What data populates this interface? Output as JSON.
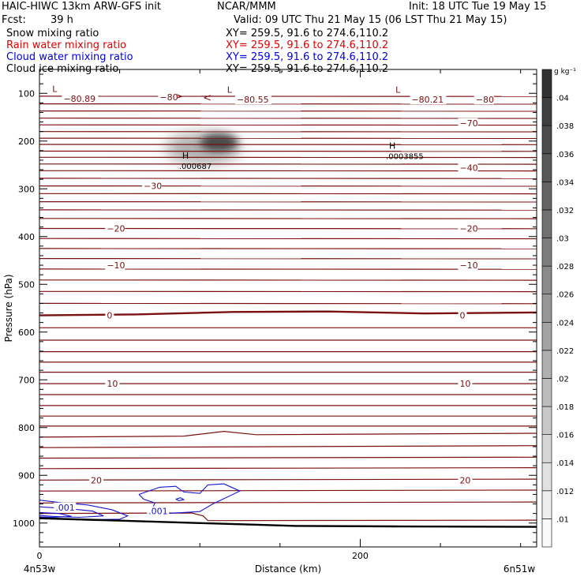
{
  "header": {
    "model": "HAIC-HIWC 13km ARW-GFS init",
    "org": "NCAR/MMM",
    "init": "Init: 18 UTC Tue 19 May 15",
    "fcst_label": "Fcst:",
    "fcst_value": "39 h",
    "valid": "Valid: 09 UTC Thu 21 May 15 (06 LST Thu 21 May 15)",
    "fields": [
      {
        "name": "Snow mixing ratio",
        "xy": "XY= 259.5, 91.6 to 274.6,110.2",
        "color": "#000000"
      },
      {
        "name": "Rain water mixing ratio",
        "xy": "XY= 259.5, 91.6 to 274.6,110.2",
        "color": "#e00000"
      },
      {
        "name": "Cloud water mixing ratio",
        "xy": "XY= 259.5, 91.6 to 274.6,110.2",
        "color": "#0000e0"
      },
      {
        "name": "Cloud ice mixing ratio",
        "xy": "XY= 259.5, 91.6 to 274.6,110.2",
        "color": "#000000"
      }
    ]
  },
  "chart_data": {
    "type": "cross-section",
    "xlabel": "Distance (km)",
    "ylabel": "Pressure (hPa)",
    "x_ticks": [
      0,
      200
    ],
    "xlim": [
      0,
      310
    ],
    "y_ticks": [
      100,
      200,
      300,
      400,
      500,
      600,
      700,
      800,
      900,
      1000
    ],
    "ylim": [
      50,
      1050
    ],
    "y_scale": "linear",
    "x_endpoint_labels": {
      "left": "4n53w",
      "right": "6n51w"
    },
    "colorbar": {
      "unit": "g kg⁻¹",
      "ticks": [
        ".01",
        ".012",
        ".014",
        ".016",
        ".018",
        ".02",
        ".022",
        ".024",
        ".026",
        ".028",
        ".03",
        ".032",
        ".034",
        ".036",
        ".038",
        ".04"
      ]
    },
    "temperature_contours": [
      {
        "labels": [
          {
            "x": 15,
            "p": 111,
            "text": "−80.89"
          },
          {
            "x": 75,
            "p": 108,
            "text": "−80"
          },
          {
            "x": 123,
            "p": 113,
            "text": "−80.55"
          },
          {
            "x": 232,
            "p": 113,
            "text": "−80.21"
          },
          {
            "x": 272,
            "p": 113,
            "text": "−80"
          }
        ]
      },
      {
        "labels": [
          {
            "x": 262,
            "p": 162,
            "text": "−70"
          }
        ]
      },
      {
        "labels": [
          {
            "x": 262,
            "p": 256,
            "text": "−40"
          }
        ]
      },
      {
        "labels": [
          {
            "x": 65,
            "p": 294,
            "text": "−30"
          }
        ]
      },
      {
        "labels": [
          {
            "x": 42,
            "p": 383,
            "text": "−20"
          },
          {
            "x": 262,
            "p": 383,
            "text": "−20"
          }
        ]
      },
      {
        "labels": [
          {
            "x": 42,
            "p": 460,
            "text": "−10"
          },
          {
            "x": 262,
            "p": 460,
            "text": "−10"
          }
        ]
      },
      {
        "labels": [
          {
            "x": 42,
            "p": 565,
            "text": "0"
          },
          {
            "x": 262,
            "p": 565,
            "text": "0"
          }
        ]
      },
      {
        "labels": [
          {
            "x": 42,
            "p": 708,
            "text": "10"
          },
          {
            "x": 262,
            "p": 708,
            "text": "10"
          }
        ]
      },
      {
        "labels": [
          {
            "x": 32,
            "p": 910,
            "text": "20"
          },
          {
            "x": 262,
            "p": 910,
            "text": "20"
          }
        ]
      }
    ],
    "extrema": [
      {
        "kind": "L",
        "x": 8,
        "p": 97
      },
      {
        "kind": "L",
        "x": 117,
        "p": 99
      },
      {
        "kind": "L",
        "x": 222,
        "p": 99
      },
      {
        "kind": "H",
        "x": 89,
        "p": 237,
        "value": ".000687"
      },
      {
        "kind": "H",
        "x": 218,
        "p": 216,
        "value": ".0003855"
      }
    ],
    "cloud_water_labels": [
      {
        "x": 10,
        "p": 967,
        "text": ".001"
      },
      {
        "x": 68,
        "p": 975,
        "text": ".001"
      }
    ]
  }
}
